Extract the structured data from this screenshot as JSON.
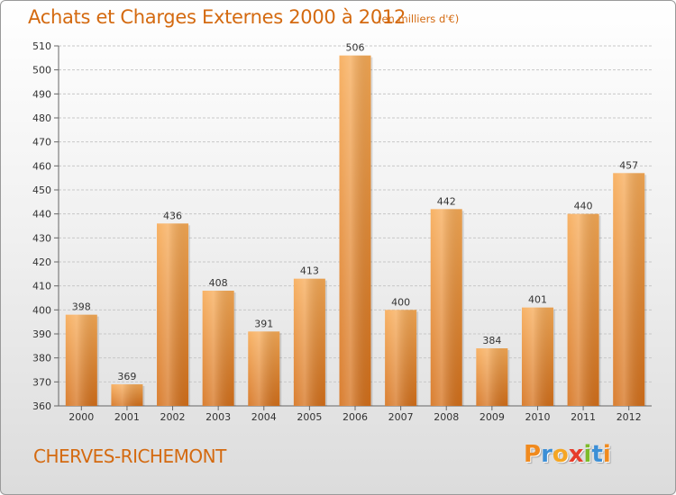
{
  "header": {
    "title": "Achats et Charges Externes 2000 à 2012",
    "subtitle": "(en milliers d'€)"
  },
  "footer": {
    "commune": "CHERVES-RICHEMONT",
    "logo": "Proxiti",
    "logo_letters": [
      {
        "ch": "P",
        "color": "#f08a1e"
      },
      {
        "ch": "r",
        "color": "#3c8fd6"
      },
      {
        "ch": "o",
        "color": "#f5a623"
      },
      {
        "ch": "x",
        "color": "#e63d2b"
      },
      {
        "ch": "i",
        "color": "#7dbb2a"
      },
      {
        "ch": "t",
        "color": "#3c8fd6"
      },
      {
        "ch": "i",
        "color": "#f08a1e"
      }
    ]
  },
  "colors": {
    "accent": "#d46a10",
    "bar_light": "#f7a850",
    "bar_dark": "#d9741a",
    "grid": "#c8c8c8"
  },
  "chart_data": {
    "type": "bar",
    "title": "Achats et Charges Externes 2000 à 2012",
    "subtitle": "(en milliers d'€)",
    "categories": [
      "2000",
      "2001",
      "2002",
      "2003",
      "2004",
      "2005",
      "2006",
      "2007",
      "2008",
      "2009",
      "2010",
      "2011",
      "2012"
    ],
    "values": [
      398,
      369,
      436,
      408,
      391,
      413,
      506,
      400,
      442,
      384,
      401,
      440,
      457
    ],
    "ylim": [
      360,
      510
    ],
    "yticks": [
      360,
      370,
      380,
      390,
      400,
      410,
      420,
      430,
      440,
      450,
      460,
      470,
      480,
      490,
      500,
      510
    ],
    "grid": true,
    "legend": "none",
    "xlabel": "",
    "ylabel": ""
  }
}
